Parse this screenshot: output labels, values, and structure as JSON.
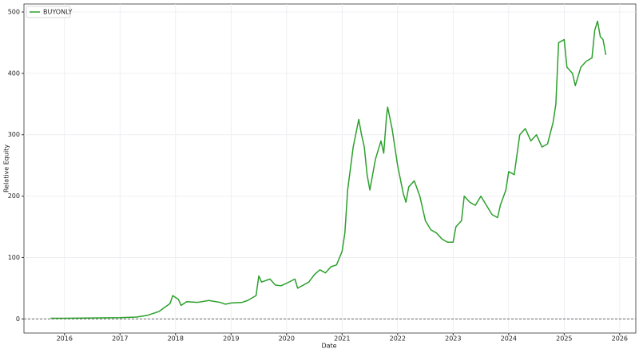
{
  "chart_data": {
    "type": "line",
    "x_label": "Date",
    "y_label": "Relative Equity",
    "x": [
      2015.75,
      2016.0,
      2016.5,
      2017.0,
      2017.3,
      2017.5,
      2017.7,
      2017.9,
      2017.95,
      2018.05,
      2018.1,
      2018.2,
      2018.4,
      2018.6,
      2018.8,
      2018.9,
      2019.0,
      2019.2,
      2019.3,
      2019.45,
      2019.5,
      2019.55,
      2019.7,
      2019.8,
      2019.9,
      2020.0,
      2020.15,
      2020.2,
      2020.4,
      2020.5,
      2020.6,
      2020.7,
      2020.8,
      2020.9,
      2021.0,
      2021.05,
      2021.1,
      2021.15,
      2021.2,
      2021.3,
      2021.35,
      2021.4,
      2021.45,
      2021.5,
      2021.6,
      2021.7,
      2021.75,
      2021.8,
      2021.82,
      2021.9,
      2022.0,
      2022.1,
      2022.15,
      2022.2,
      2022.3,
      2022.4,
      2022.5,
      2022.6,
      2022.7,
      2022.8,
      2022.9,
      2023.0,
      2023.05,
      2023.15,
      2023.2,
      2023.3,
      2023.4,
      2023.5,
      2023.6,
      2023.7,
      2023.8,
      2023.85,
      2023.95,
      2024.0,
      2024.1,
      2024.2,
      2024.3,
      2024.4,
      2024.5,
      2024.6,
      2024.7,
      2024.8,
      2024.85,
      2024.9,
      2025.0,
      2025.05,
      2025.15,
      2025.2,
      2025.3,
      2025.4,
      2025.5,
      2025.55,
      2025.6,
      2025.65,
      2025.7,
      2025.75
    ],
    "series": [
      {
        "name": "BUYONLY",
        "color": "#2ca02c",
        "values": [
          1,
          1,
          1.5,
          2,
          3,
          6,
          12,
          25,
          38,
          32,
          22,
          28,
          27,
          30,
          27,
          24,
          26,
          27,
          30,
          38,
          70,
          60,
          65,
          55,
          54,
          58,
          65,
          50,
          60,
          72,
          80,
          75,
          85,
          88,
          110,
          140,
          210,
          245,
          280,
          325,
          300,
          280,
          235,
          210,
          260,
          290,
          270,
          330,
          345,
          310,
          250,
          205,
          190,
          215,
          225,
          200,
          160,
          145,
          140,
          130,
          125,
          125,
          150,
          160,
          200,
          190,
          185,
          200,
          185,
          170,
          165,
          185,
          210,
          240,
          235,
          300,
          310,
          290,
          300,
          280,
          285,
          320,
          350,
          450,
          455,
          410,
          400,
          380,
          410,
          420,
          425,
          470,
          485,
          460,
          455,
          430
        ]
      }
    ],
    "xlim": [
      2015.27,
      2026.29
    ],
    "xticks": [
      2016,
      2017,
      2018,
      2019,
      2020,
      2021,
      2022,
      2023,
      2024,
      2025,
      2026
    ],
    "ylim": [
      -23,
      513
    ],
    "yticks": [
      0,
      100,
      200,
      300,
      400,
      500
    ],
    "reference_line": 0,
    "grid": true,
    "legend": "upper-left"
  }
}
